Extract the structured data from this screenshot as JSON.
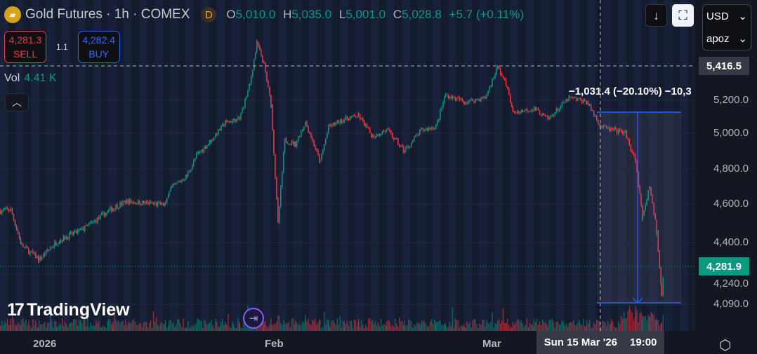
{
  "header": {
    "symbol_icon": "gold-bars-icon",
    "title": "Gold Futures · 1h · COMEX",
    "badge": "D",
    "ohlc": {
      "o_label": "O",
      "o": "5,010.0",
      "h_label": "H",
      "h": "5,035.0",
      "l_label": "L",
      "l": "5,001.0",
      "c_label": "C",
      "c": "5,028.8",
      "change": "+5.7 (+0.11%)"
    }
  },
  "trade": {
    "sell_price": "4,281.3",
    "sell_label": "SELL",
    "spread": "1.1",
    "buy_price": "4,282.4",
    "buy_label": "BUY"
  },
  "volume": {
    "label": "Vol",
    "value": "4.41 K"
  },
  "controls": {
    "currency": "USD",
    "unit": "apoz"
  },
  "price_axis": {
    "ticks": [
      "5,200.0",
      "5,000.0",
      "4,800.0",
      "4,600.0",
      "4,400.0",
      "4,240.0",
      "4,090.0"
    ],
    "crosshair_price": "5,416.5",
    "last_price": "4,281.9"
  },
  "time_axis": {
    "ticks": [
      "2026",
      "Feb",
      "Mar"
    ],
    "crosshair_date": "Sun 15 Mar '26",
    "crosshair_time": "19:00"
  },
  "measure": {
    "text": "−1,031.4 (−20.10%) −10,3"
  },
  "branding": {
    "logo": "TradingView"
  },
  "colors": {
    "up": "#089981",
    "down": "#f23645",
    "accent": "#2962ff",
    "background": "#131722"
  },
  "chart_data": {
    "type": "candlestick",
    "title": "Gold Futures · 1h · COMEX",
    "ylim": [
      4090,
      5416.5
    ],
    "price_path": [
      [
        "2025-12-25T19:00",
        4565
      ],
      [
        "2025-12-27T05:00",
        4570
      ],
      [
        "2025-12-28T16:00",
        4385
      ],
      [
        "2025-12-31T01:00",
        4315
      ],
      [
        "2026-01-02T10:00",
        4405
      ],
      [
        "2026-01-06T06:00",
        4475
      ],
      [
        "2026-01-10T02:00",
        4580
      ],
      [
        "2026-01-11T23:00",
        4615
      ],
      [
        "2026-01-17T05:00",
        4595
      ],
      [
        "2026-01-17T17:00",
        4680
      ],
      [
        "2026-01-20T02:00",
        4760
      ],
      [
        "2026-01-21T12:00",
        4880
      ],
      [
        "2026-01-23T10:00",
        4960
      ],
      [
        "2026-01-25T08:00",
        5065
      ],
      [
        "2026-01-27T06:00",
        5085
      ],
      [
        "2026-01-28T16:00",
        5300
      ],
      [
        "2026-01-29T15:00",
        5560
      ],
      [
        "2026-01-30T14:00",
        5430
      ],
      [
        "2026-01-31T13:00",
        5170
      ],
      [
        "2026-02-01T11:00",
        4490
      ],
      [
        "2026-02-02T08:00",
        4960
      ],
      [
        "2026-02-03T17:00",
        4940
      ],
      [
        "2026-02-05T00:00",
        5065
      ],
      [
        "2026-02-06T21:00",
        4840
      ],
      [
        "2026-02-08T00:00",
        5040
      ],
      [
        "2026-02-10T00:00",
        5085
      ],
      [
        "2026-02-11T20:00",
        5105
      ],
      [
        "2026-02-13T15:00",
        4980
      ],
      [
        "2026-02-15T11:00",
        5020
      ],
      [
        "2026-02-17T17:00",
        4900
      ],
      [
        "2026-02-19T23:00",
        5020
      ],
      [
        "2026-02-21T19:00",
        5040
      ],
      [
        "2026-02-23T00:00",
        5235
      ],
      [
        "2026-02-25T10:00",
        5190
      ],
      [
        "2026-02-28T03:00",
        5215
      ],
      [
        "2026-03-01T18:00",
        5410
      ],
      [
        "2026-03-02T22:00",
        5300
      ],
      [
        "2026-03-03T20:00",
        5125
      ],
      [
        "2026-03-06T17:00",
        5150
      ],
      [
        "2026-03-08T14:00",
        5085
      ],
      [
        "2026-03-11T12:00",
        5215
      ],
      [
        "2026-03-13T21:00",
        5190
      ],
      [
        "2026-03-15T19:00",
        5040
      ],
      [
        "2026-03-17T05:00",
        5020
      ],
      [
        "2026-03-19T02:00",
        5000
      ],
      [
        "2026-03-20T12:00",
        4840
      ],
      [
        "2026-03-21T11:00",
        4530
      ],
      [
        "2026-03-22T10:00",
        4700
      ],
      [
        "2026-03-23T09:00",
        4455
      ],
      [
        "2026-03-24T01:00",
        4140
      ],
      [
        "2026-03-24T08:00",
        4281.9
      ]
    ]
  }
}
